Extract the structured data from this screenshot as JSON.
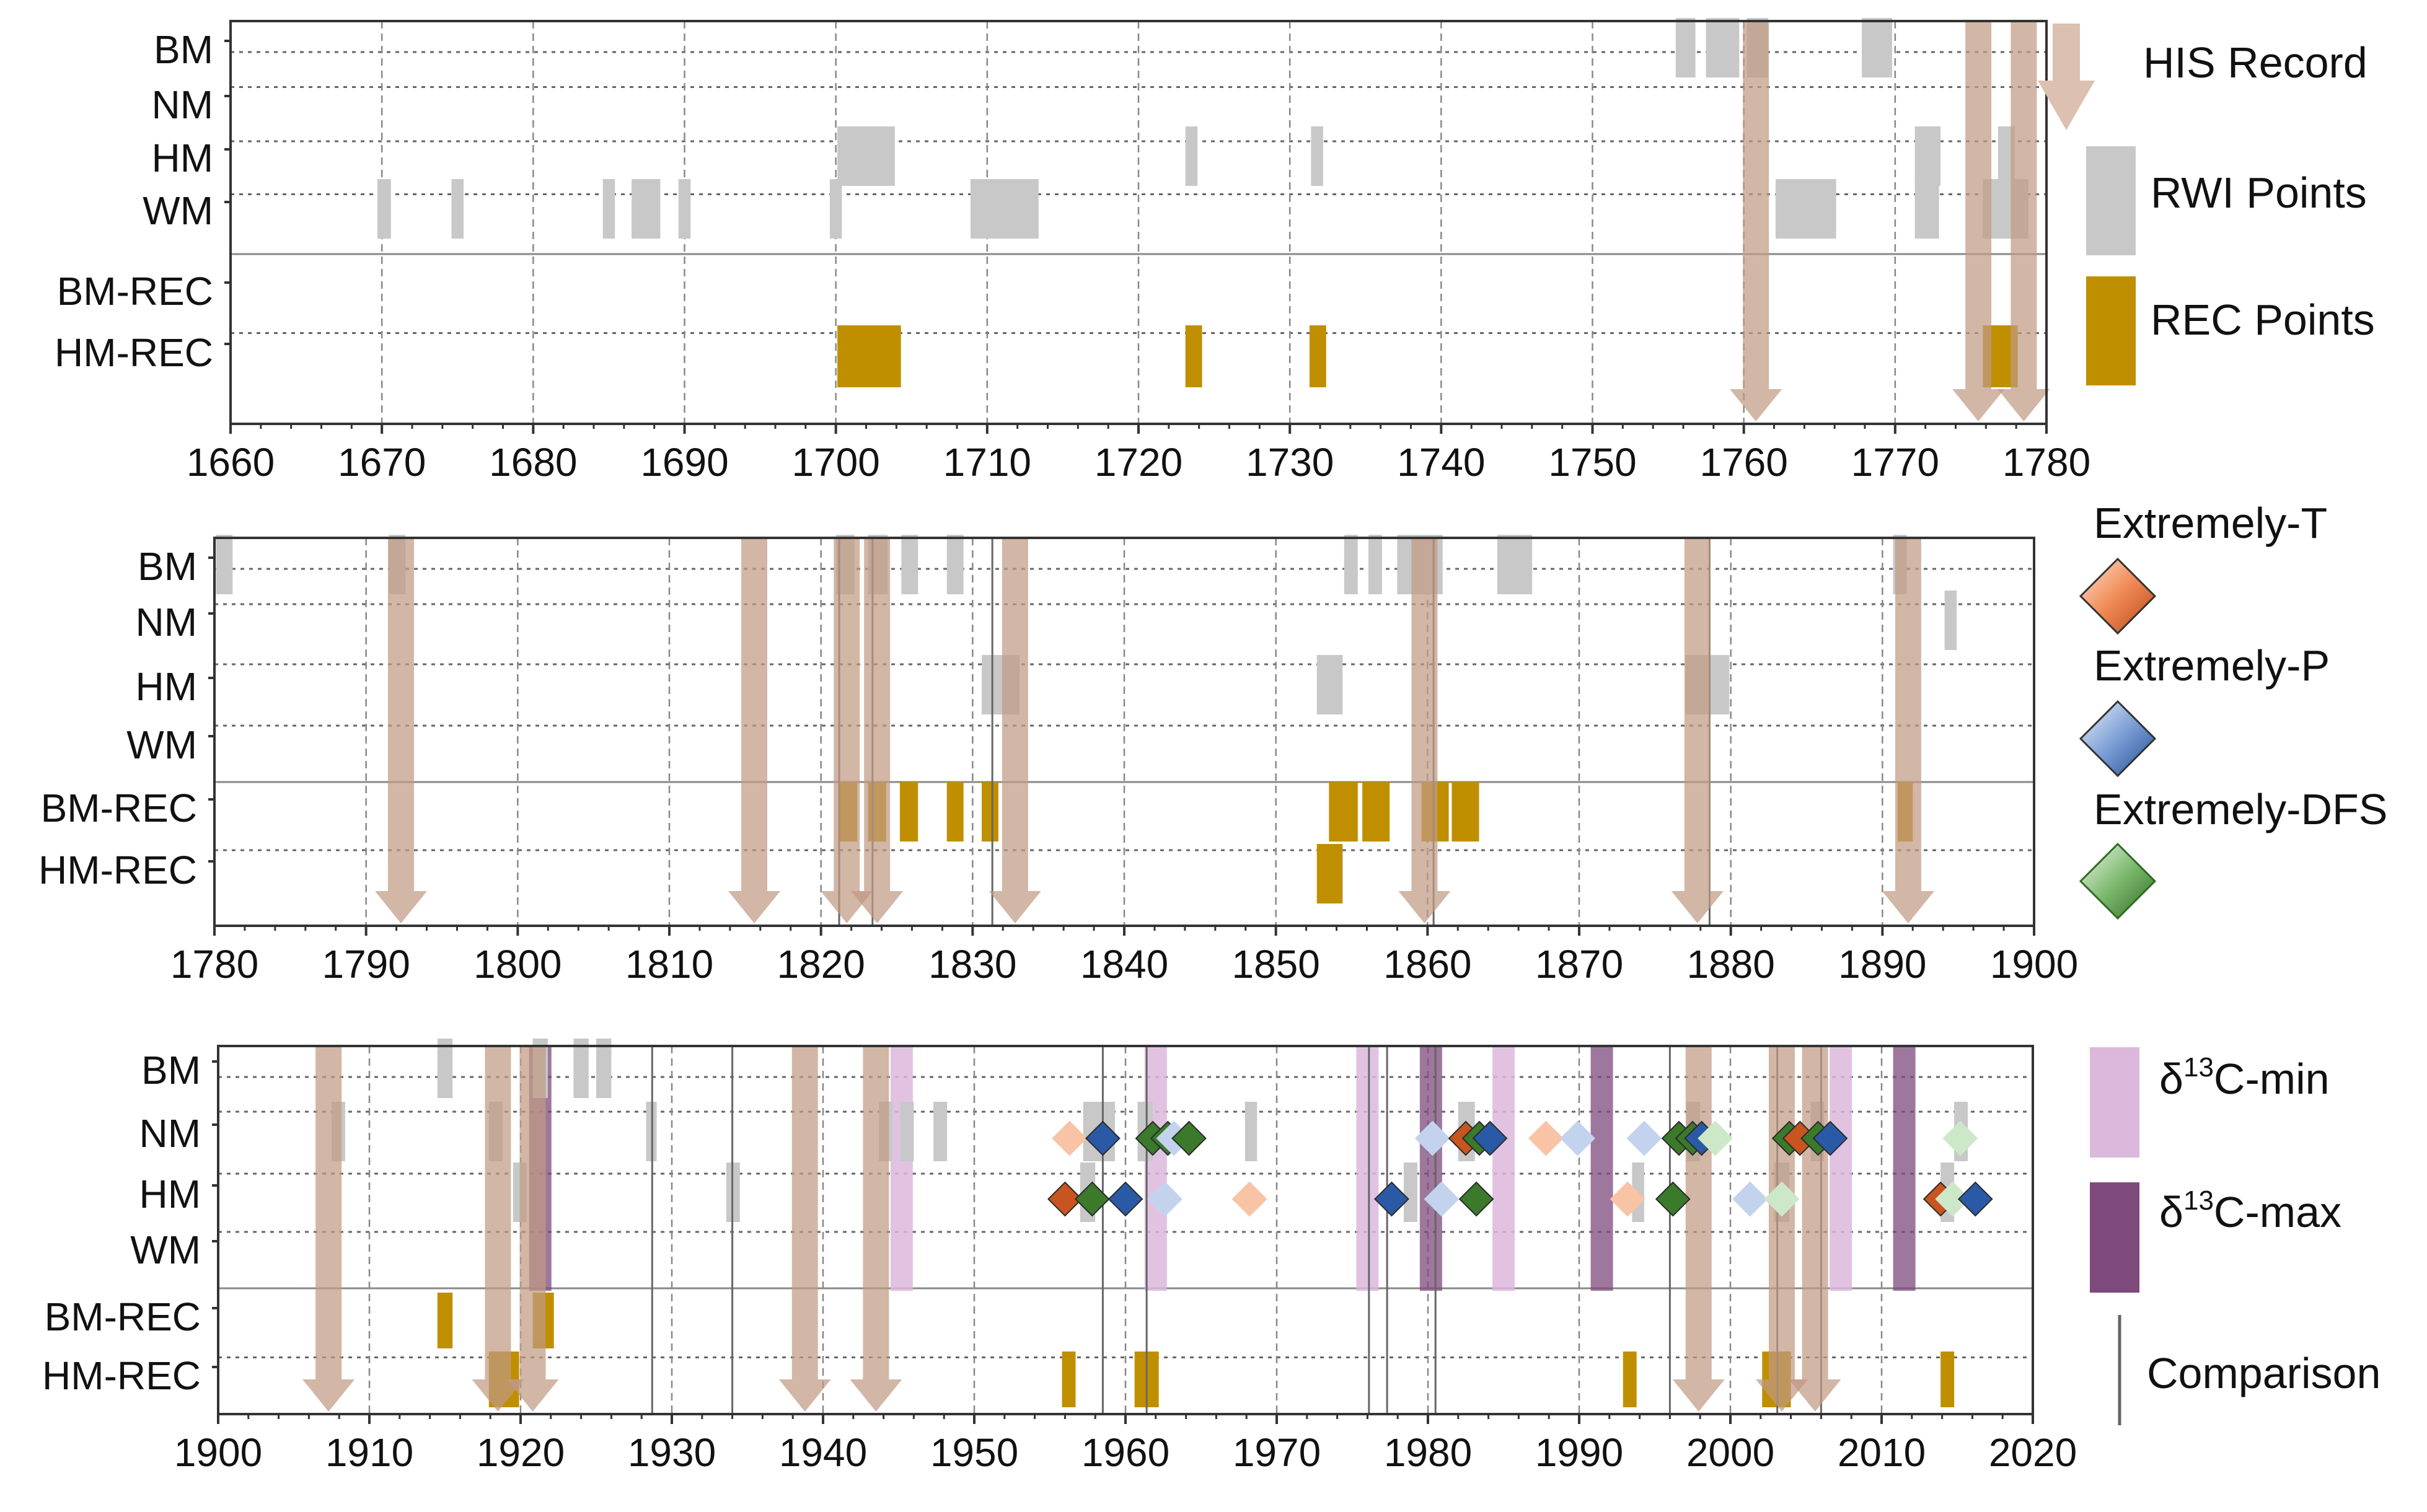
{
  "chart_data": {
    "type": "event-timeline",
    "row_labels": [
      "BM",
      "NM",
      "HM",
      "WM",
      "BM-REC",
      "HM-REC"
    ],
    "legend": {
      "his_record": "HIS Record",
      "rwi_points": "RWI Points",
      "rec_points": "REC Points",
      "extremely_t": "Extremely-T",
      "extremely_p": "Extremely-P",
      "extremely_dfs": "Extremely-DFS",
      "d13c_min_prefix": "δ",
      "d13c_min_sup": "13",
      "d13c_min_suffix": "C-min",
      "d13c_max_prefix": "δ",
      "d13c_max_sup": "13",
      "d13c_max_suffix": "C-max",
      "comparison": "Comparison"
    },
    "colors": {
      "his": "#c19a84",
      "rwi": "#c8c8c8",
      "rec": "#c08f00",
      "t_light": "#f9c3a6",
      "t_dark": "#c8541f",
      "p_light": "#c3d3ee",
      "p_dark": "#2a5aa5",
      "dfs_light": "#cde8c8",
      "dfs_dark": "#3a7a2a",
      "d13c_min": "#dcb8dc",
      "d13c_max": "#7e4a7c",
      "comparison": "#666666"
    },
    "panels": [
      {
        "xlim": [
          1660,
          1780
        ],
        "ticks": [
          "1660",
          "1670",
          "1680",
          "1690",
          "1700",
          "1710",
          "1720",
          "1730",
          "1740",
          "1750",
          "1760",
          "1770",
          "1780"
        ],
        "rwi": [
          {
            "row": "BM",
            "start": 1755.5,
            "end": 1756.8
          },
          {
            "row": "BM",
            "start": 1757.5,
            "end": 1759.7
          },
          {
            "row": "BM",
            "start": 1760.2,
            "end": 1761.6
          },
          {
            "row": "BM",
            "start": 1767.8,
            "end": 1769.8
          },
          {
            "row": "HM",
            "start": 1700.1,
            "end": 1703.9
          },
          {
            "row": "HM",
            "start": 1723.1,
            "end": 1723.9
          },
          {
            "row": "HM",
            "start": 1731.4,
            "end": 1732.2
          },
          {
            "row": "HM",
            "start": 1771.3,
            "end": 1773.0
          },
          {
            "row": "HM",
            "start": 1776.8,
            "end": 1777.9
          },
          {
            "row": "WM",
            "start": 1669.7,
            "end": 1670.6
          },
          {
            "row": "WM",
            "start": 1674.6,
            "end": 1675.4
          },
          {
            "row": "WM",
            "start": 1684.6,
            "end": 1685.4
          },
          {
            "row": "WM",
            "start": 1686.5,
            "end": 1688.4
          },
          {
            "row": "WM",
            "start": 1689.6,
            "end": 1690.4
          },
          {
            "row": "WM",
            "start": 1699.6,
            "end": 1700.4
          },
          {
            "row": "WM",
            "start": 1708.9,
            "end": 1713.4
          },
          {
            "row": "WM",
            "start": 1762.1,
            "end": 1766.1
          },
          {
            "row": "WM",
            "start": 1771.3,
            "end": 1772.9
          },
          {
            "row": "WM",
            "start": 1775.8,
            "end": 1778.8
          }
        ],
        "rec": [
          {
            "row": "HM-REC",
            "start": 1700.1,
            "end": 1704.3
          },
          {
            "row": "HM-REC",
            "start": 1723.1,
            "end": 1724.2
          },
          {
            "row": "HM-REC",
            "start": 1731.3,
            "end": 1732.4
          },
          {
            "row": "HM-REC",
            "start": 1775.8,
            "end": 1778.1
          }
        ],
        "his": [
          1760.8,
          1775.5,
          1778.5
        ],
        "comparison": [],
        "d13c_min": [],
        "d13c_max": [],
        "markers": []
      },
      {
        "xlim": [
          1780,
          1900
        ],
        "ticks": [
          "1780",
          "1790",
          "1800",
          "1810",
          "1820",
          "1830",
          "1840",
          "1850",
          "1860",
          "1870",
          "1880",
          "1890",
          "1900"
        ],
        "rwi": [
          {
            "row": "BM",
            "start": 1780.1,
            "end": 1781.2
          },
          {
            "row": "BM",
            "start": 1791.5,
            "end": 1792.6
          },
          {
            "row": "BM",
            "start": 1821.0,
            "end": 1822.2
          },
          {
            "row": "BM",
            "start": 1823.1,
            "end": 1824.4
          },
          {
            "row": "BM",
            "start": 1825.3,
            "end": 1826.4
          },
          {
            "row": "BM",
            "start": 1828.3,
            "end": 1829.4
          },
          {
            "row": "BM",
            "start": 1854.5,
            "end": 1855.4
          },
          {
            "row": "BM",
            "start": 1856.1,
            "end": 1857.0
          },
          {
            "row": "BM",
            "start": 1858.0,
            "end": 1861.0
          },
          {
            "row": "BM",
            "start": 1864.6,
            "end": 1866.9
          },
          {
            "row": "BM",
            "start": 1890.7,
            "end": 1891.6
          },
          {
            "row": "NM",
            "start": 1894.1,
            "end": 1894.9
          },
          {
            "row": "HM",
            "start": 1830.6,
            "end": 1833.1
          },
          {
            "row": "HM",
            "start": 1852.7,
            "end": 1854.4
          },
          {
            "row": "HM",
            "start": 1877.0,
            "end": 1879.9
          }
        ],
        "rec": [
          {
            "row": "BM-REC",
            "start": 1821.2,
            "end": 1822.4
          },
          {
            "row": "BM-REC",
            "start": 1823.1,
            "end": 1824.3
          },
          {
            "row": "BM-REC",
            "start": 1825.2,
            "end": 1826.4
          },
          {
            "row": "BM-REC",
            "start": 1828.3,
            "end": 1829.4
          },
          {
            "row": "BM-REC",
            "start": 1830.6,
            "end": 1831.7
          },
          {
            "row": "BM-REC",
            "start": 1853.5,
            "end": 1855.4
          },
          {
            "row": "BM-REC",
            "start": 1855.7,
            "end": 1857.5
          },
          {
            "row": "BM-REC",
            "start": 1859.6,
            "end": 1861.4
          },
          {
            "row": "BM-REC",
            "start": 1861.6,
            "end": 1863.4
          },
          {
            "row": "BM-REC",
            "start": 1891.0,
            "end": 1892.0
          },
          {
            "row": "HM-REC",
            "start": 1852.7,
            "end": 1854.4
          }
        ],
        "his": [
          1792.3,
          1815.6,
          1821.7,
          1823.7,
          1832.8,
          1859.8,
          1877.8,
          1891.7
        ],
        "comparison": [
          1821.2,
          1823.4,
          1831.3,
          1860.4,
          1878.6
        ],
        "d13c_min": [],
        "d13c_max": [],
        "markers": []
      },
      {
        "xlim": [
          1900,
          2020
        ],
        "ticks": [
          "1900",
          "1910",
          "1920",
          "1930",
          "1940",
          "1950",
          "1960",
          "1970",
          "1980",
          "1990",
          "2000",
          "2010",
          "2020"
        ],
        "rwi": [
          {
            "row": "BM",
            "start": 1914.5,
            "end": 1915.5
          },
          {
            "row": "BM",
            "start": 1920.8,
            "end": 1921.8
          },
          {
            "row": "BM",
            "start": 1923.5,
            "end": 1924.5
          },
          {
            "row": "BM",
            "start": 1925.0,
            "end": 1926.0
          },
          {
            "row": "NM",
            "start": 1907.5,
            "end": 1908.4
          },
          {
            "row": "NM",
            "start": 1917.9,
            "end": 1918.8
          },
          {
            "row": "NM",
            "start": 1928.3,
            "end": 1929.0
          },
          {
            "row": "NM",
            "start": 1943.7,
            "end": 1944.6
          },
          {
            "row": "NM",
            "start": 1945.1,
            "end": 1946.0
          },
          {
            "row": "NM",
            "start": 1947.3,
            "end": 1948.2
          },
          {
            "row": "NM",
            "start": 1957.2,
            "end": 1959.3
          },
          {
            "row": "NM",
            "start": 1960.8,
            "end": 1961.8
          },
          {
            "row": "NM",
            "start": 1967.9,
            "end": 1968.7
          },
          {
            "row": "NM",
            "start": 1982.0,
            "end": 1983.1
          },
          {
            "row": "NM",
            "start": 1997.1,
            "end": 1998.0
          },
          {
            "row": "NM",
            "start": 2005.3,
            "end": 2006.2
          },
          {
            "row": "NM",
            "start": 2014.8,
            "end": 2015.7
          },
          {
            "row": "HM",
            "start": 1919.5,
            "end": 1920.4
          },
          {
            "row": "HM",
            "start": 1933.6,
            "end": 1934.5
          },
          {
            "row": "HM",
            "start": 1957.0,
            "end": 1958.0
          },
          {
            "row": "HM",
            "start": 1978.4,
            "end": 1979.3
          },
          {
            "row": "HM",
            "start": 1993.5,
            "end": 1994.3
          },
          {
            "row": "HM",
            "start": 2002.9,
            "end": 2003.9
          },
          {
            "row": "HM",
            "start": 2013.9,
            "end": 2014.8
          }
        ],
        "rec": [
          {
            "row": "BM-REC",
            "start": 1914.5,
            "end": 1915.5
          },
          {
            "row": "BM-REC",
            "start": 1920.8,
            "end": 1922.2
          },
          {
            "row": "HM-REC",
            "start": 1917.9,
            "end": 1919.9
          },
          {
            "row": "HM-REC",
            "start": 1955.8,
            "end": 1956.7
          },
          {
            "row": "HM-REC",
            "start": 1960.6,
            "end": 1962.2
          },
          {
            "row": "HM-REC",
            "start": 1992.9,
            "end": 1993.8
          },
          {
            "row": "HM-REC",
            "start": 2002.1,
            "end": 2004.0
          },
          {
            "row": "HM-REC",
            "start": 2013.9,
            "end": 2014.8
          }
        ],
        "his": [
          1907.3,
          1918.5,
          1920.8,
          1938.8,
          1943.5,
          1997.9,
          2003.4,
          2005.6
        ],
        "comparison": [
          1928.7,
          1934.0,
          1958.5,
          1961.4,
          1976.1,
          1977.3,
          1980.5,
          1996.0,
          2003.1,
          2006.0
        ],
        "d13c_min": [
          1945.2,
          1962.0,
          1976.0,
          1985.0,
          2007.3
        ],
        "d13c_max": [
          1921.3,
          1980.2,
          1991.5,
          2011.5
        ],
        "markers": [
          {
            "row": "NM",
            "year": 1956.3,
            "kind": "T",
            "shade": "light"
          },
          {
            "row": "NM",
            "year": 1958.5,
            "kind": "P",
            "shade": "dark"
          },
          {
            "row": "NM",
            "year": 1961.8,
            "kind": "DFS",
            "shade": "dark"
          },
          {
            "row": "NM",
            "year": 1962.8,
            "kind": "DFS",
            "shade": "dark"
          },
          {
            "row": "NM",
            "year": 1963.2,
            "kind": "P",
            "shade": "light"
          },
          {
            "row": "NM",
            "year": 1964.2,
            "kind": "DFS",
            "shade": "dark"
          },
          {
            "row": "NM",
            "year": 1980.3,
            "kind": "P",
            "shade": "light"
          },
          {
            "row": "NM",
            "year": 1982.5,
            "kind": "T",
            "shade": "dark"
          },
          {
            "row": "NM",
            "year": 1983.4,
            "kind": "DFS",
            "shade": "dark"
          },
          {
            "row": "NM",
            "year": 1984.1,
            "kind": "P",
            "shade": "dark"
          },
          {
            "row": "NM",
            "year": 1987.8,
            "kind": "T",
            "shade": "light"
          },
          {
            "row": "NM",
            "year": 1989.9,
            "kind": "P",
            "shade": "light"
          },
          {
            "row": "NM",
            "year": 1994.3,
            "kind": "P",
            "shade": "light"
          },
          {
            "row": "NM",
            "year": 1996.6,
            "kind": "DFS",
            "shade": "dark"
          },
          {
            "row": "NM",
            "year": 1997.5,
            "kind": "DFS",
            "shade": "dark"
          },
          {
            "row": "NM",
            "year": 1998.1,
            "kind": "P",
            "shade": "dark"
          },
          {
            "row": "NM",
            "year": 1999.0,
            "kind": "DFS",
            "shade": "light"
          },
          {
            "row": "NM",
            "year": 2003.9,
            "kind": "DFS",
            "shade": "dark"
          },
          {
            "row": "NM",
            "year": 2004.6,
            "kind": "T",
            "shade": "dark"
          },
          {
            "row": "NM",
            "year": 2005.8,
            "kind": "DFS",
            "shade": "dark"
          },
          {
            "row": "NM",
            "year": 2006.6,
            "kind": "P",
            "shade": "dark"
          },
          {
            "row": "NM",
            "year": 2015.2,
            "kind": "DFS",
            "shade": "light"
          },
          {
            "row": "HM",
            "year": 1956.0,
            "kind": "T",
            "shade": "dark"
          },
          {
            "row": "HM",
            "year": 1957.8,
            "kind": "DFS",
            "shade": "dark"
          },
          {
            "row": "HM",
            "year": 1960.0,
            "kind": "P",
            "shade": "dark"
          },
          {
            "row": "HM",
            "year": 1962.6,
            "kind": "P",
            "shade": "light"
          },
          {
            "row": "HM",
            "year": 1968.2,
            "kind": "T",
            "shade": "light"
          },
          {
            "row": "HM",
            "year": 1977.6,
            "kind": "P",
            "shade": "dark"
          },
          {
            "row": "HM",
            "year": 1980.9,
            "kind": "P",
            "shade": "light"
          },
          {
            "row": "HM",
            "year": 1983.2,
            "kind": "DFS",
            "shade": "dark"
          },
          {
            "row": "HM",
            "year": 1993.2,
            "kind": "T",
            "shade": "light"
          },
          {
            "row": "HM",
            "year": 1996.2,
            "kind": "DFS",
            "shade": "dark"
          },
          {
            "row": "HM",
            "year": 2001.3,
            "kind": "P",
            "shade": "light"
          },
          {
            "row": "HM",
            "year": 2003.4,
            "kind": "DFS",
            "shade": "light"
          },
          {
            "row": "HM",
            "year": 2013.9,
            "kind": "T",
            "shade": "dark"
          },
          {
            "row": "HM",
            "year": 2014.7,
            "kind": "DFS",
            "shade": "light"
          },
          {
            "row": "HM",
            "year": 2016.2,
            "kind": "P",
            "shade": "dark"
          }
        ]
      }
    ]
  }
}
